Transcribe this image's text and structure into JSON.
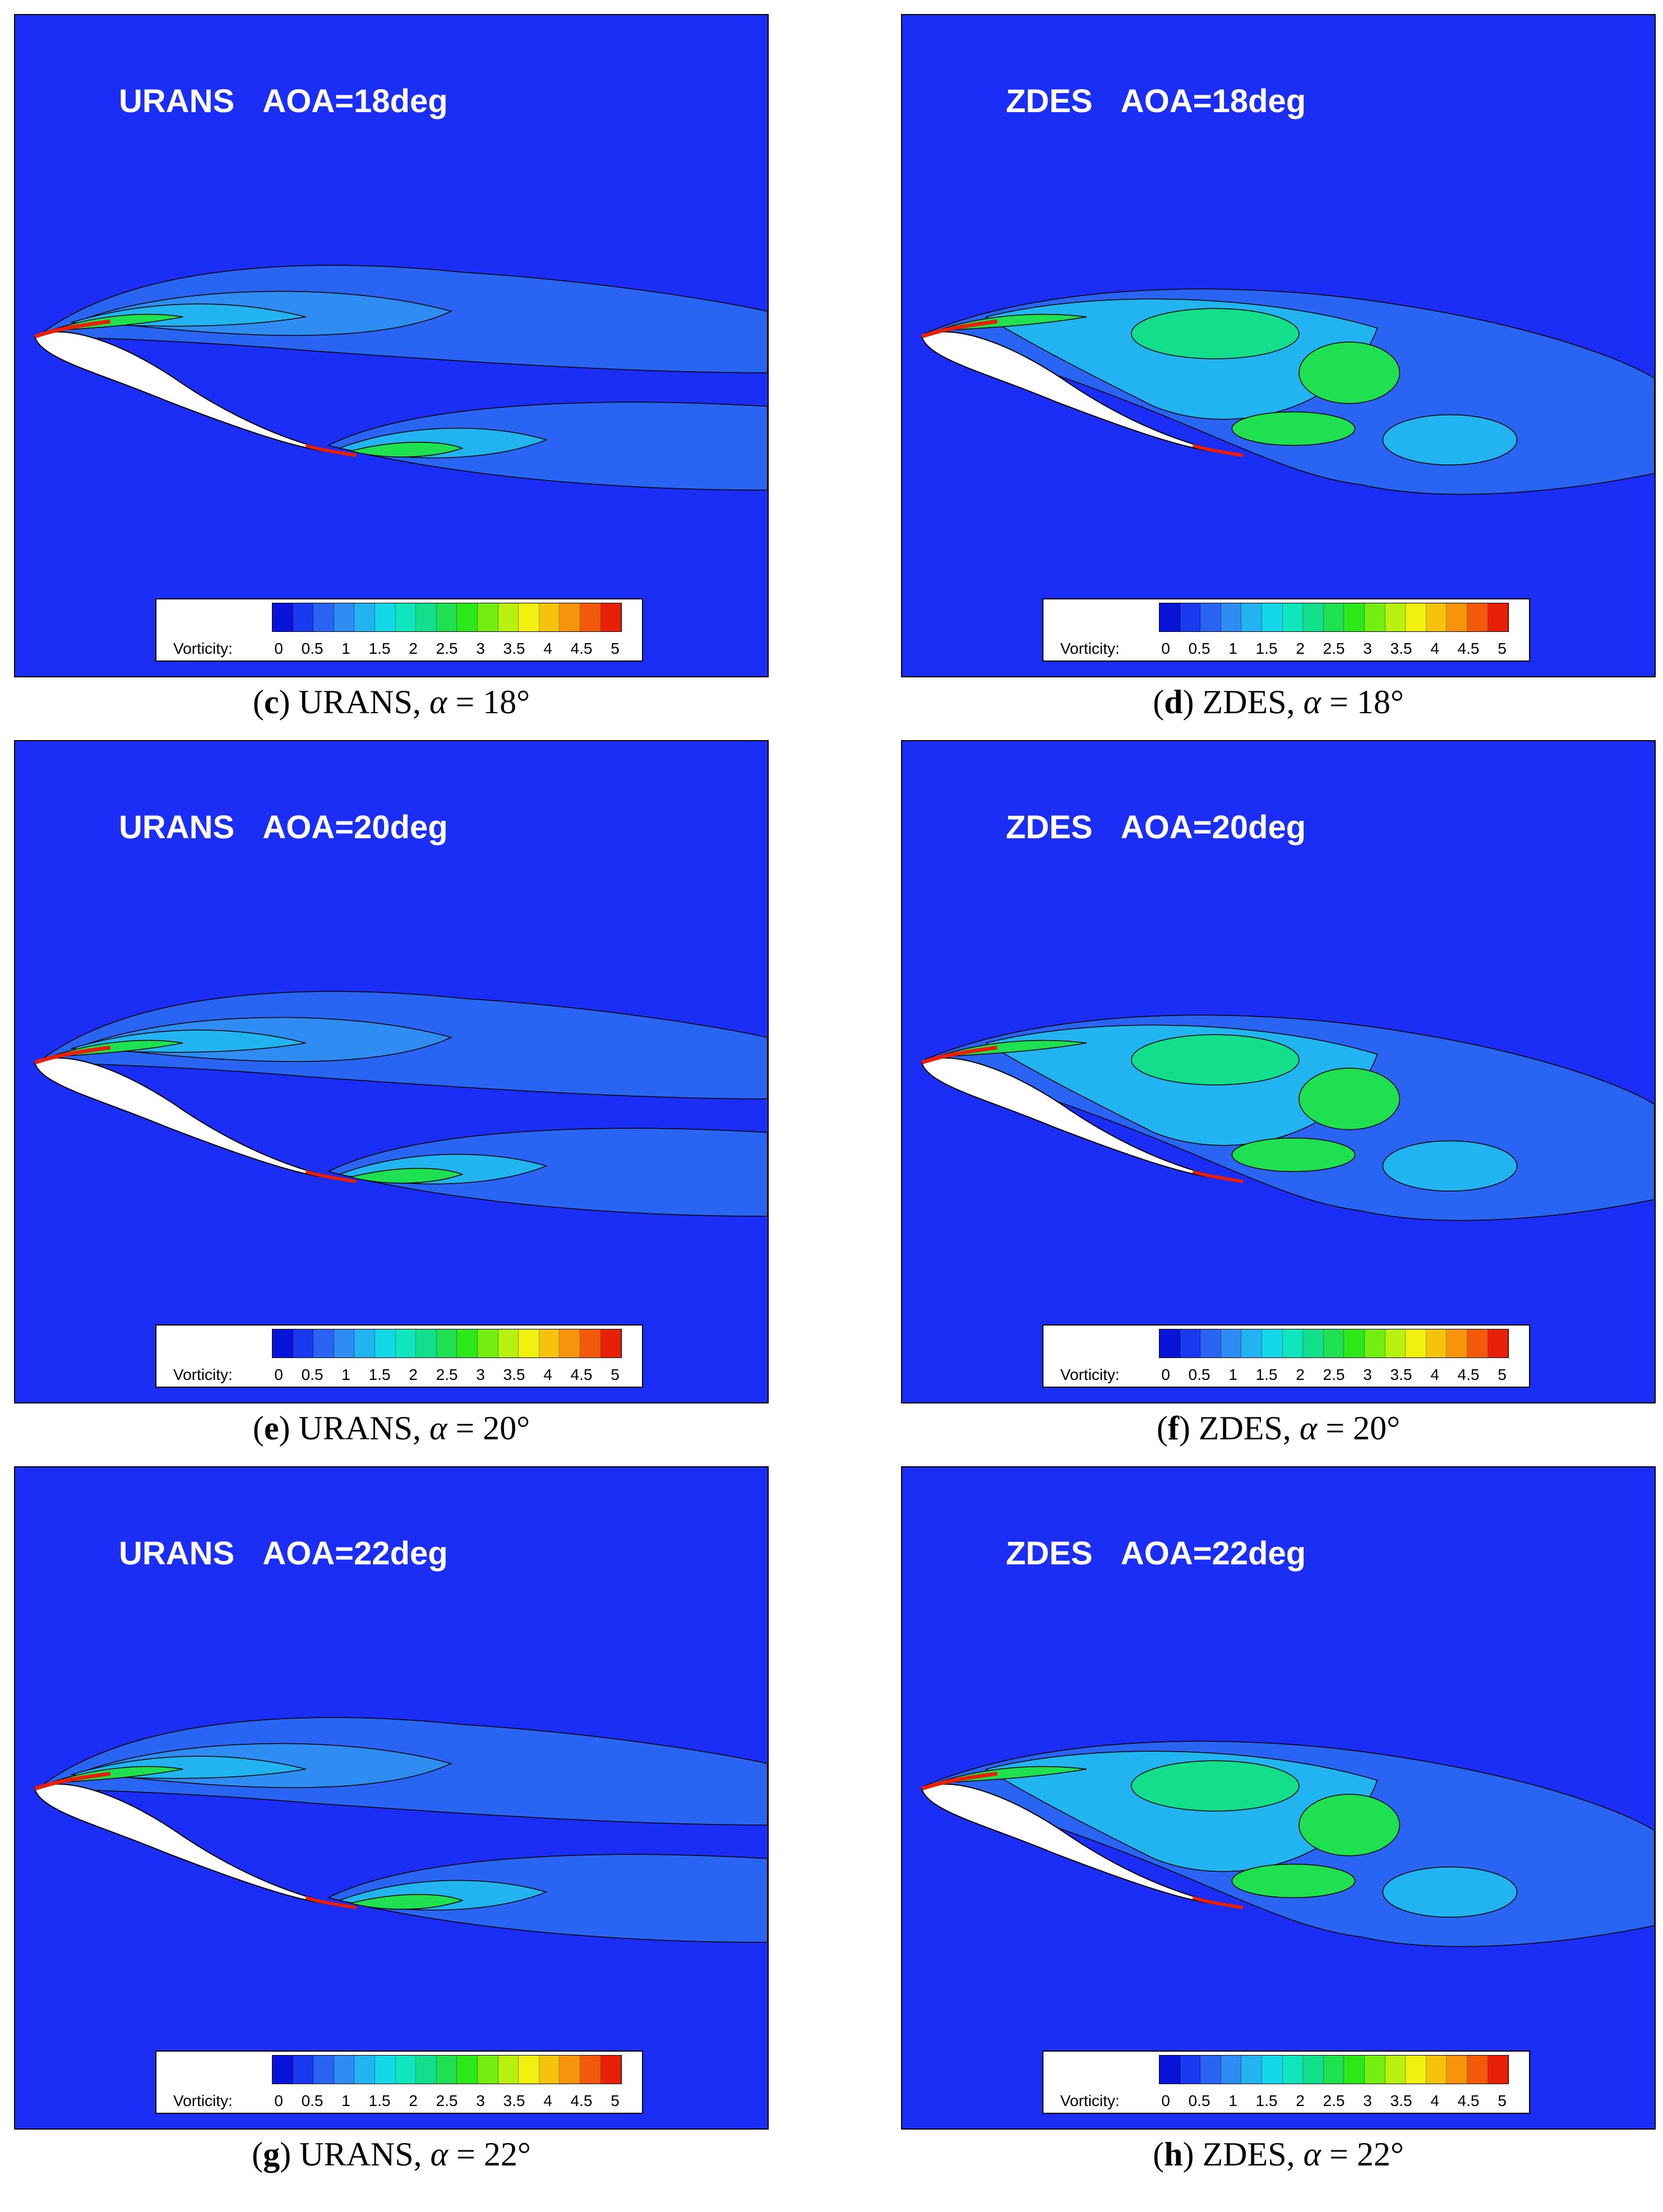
{
  "colorbar": {
    "label": "Vorticity:",
    "ticks": [
      "0",
      "0.5",
      "1",
      "1.5",
      "2",
      "2.5",
      "3",
      "3.5",
      "4",
      "4.5",
      "5"
    ],
    "range": [
      0,
      5
    ],
    "colors": [
      "#0a14d8",
      "#1a3af0",
      "#2a64f2",
      "#2f8cf2",
      "#22b4f0",
      "#14d8e8",
      "#10e6be",
      "#12de8c",
      "#1ee050",
      "#2ce818",
      "#74ee10",
      "#b8f010",
      "#f2f00e",
      "#f5c20e",
      "#f7940c",
      "#f25a0a",
      "#e8200a"
    ]
  },
  "panels": [
    {
      "method": "URANS",
      "aoa": "AOA=18deg",
      "cap_letter": "c",
      "cap_method": " URANS, ",
      "cap_alpha": "α",
      "cap_value": " = 18°"
    },
    {
      "method": "ZDES",
      "aoa": "AOA=18deg",
      "cap_letter": "d",
      "cap_method": " ZDES, ",
      "cap_alpha": "α",
      "cap_value": " = 18°"
    },
    {
      "method": "URANS",
      "aoa": "AOA=20deg",
      "cap_letter": "e",
      "cap_method": " URANS, ",
      "cap_alpha": "α",
      "cap_value": " = 20°"
    },
    {
      "method": "ZDES",
      "aoa": "AOA=20deg",
      "cap_letter": "f",
      "cap_method": " ZDES, ",
      "cap_alpha": "α",
      "cap_value": " = 20°"
    },
    {
      "method": "URANS",
      "aoa": "AOA=22deg",
      "cap_letter": "g",
      "cap_method": " URANS, ",
      "cap_alpha": "α",
      "cap_value": " = 22°"
    },
    {
      "method": "ZDES",
      "aoa": "AOA=22deg",
      "cap_letter": "h",
      "cap_method": " ZDES, ",
      "cap_alpha": "α",
      "cap_value": " = 22°"
    }
  ]
}
